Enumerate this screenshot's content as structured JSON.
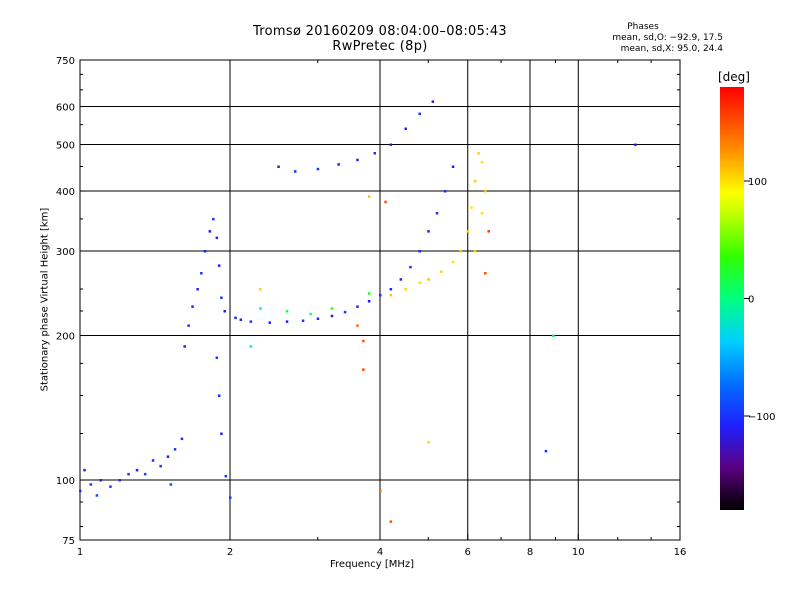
{
  "title": "Tromsø 20160209 08:04:00–08:05:43",
  "subtitle": "RwPretec (8p)",
  "phase_box": {
    "heading": "Phases",
    "line_o": "mean, sd,O: −92.9, 17.5",
    "line_x": "mean, sd,X:  95.0, 24.4"
  },
  "chart_data": {
    "type": "scatter",
    "title": "Tromsø 20160209 08:04:00–08:05:43",
    "subtitle": "RwPretec (8p)",
    "xlabel": "Frequency [MHz]",
    "ylabel": "Stationary phase Virtual Height [km]",
    "xscale": "log",
    "yscale": "log",
    "xlim": [
      1,
      16
    ],
    "ylim": [
      75,
      750
    ],
    "xticks": [
      1,
      2,
      4,
      6,
      8,
      10,
      16
    ],
    "xtick_labels": [
      "1",
      "2",
      "4",
      "6",
      "8",
      "10",
      "16"
    ],
    "yticks": [
      75,
      100,
      200,
      300,
      400,
      500,
      600,
      750
    ],
    "ytick_labels": [
      "75",
      "100",
      "200",
      "300",
      "400",
      "500",
      "600",
      "750"
    ],
    "grid": true,
    "colorbar": {
      "label": "[deg]",
      "range": [
        -180,
        180
      ],
      "ticks": [
        100,
        0,
        -100
      ],
      "tick_labels": [
        "100",
        "0",
        "−100"
      ]
    },
    "series": [
      {
        "values": [
          [
            1.0,
            95,
            -100
          ],
          [
            1.02,
            105,
            -110
          ],
          [
            1.05,
            98,
            -100
          ],
          [
            1.08,
            93,
            -90
          ],
          [
            1.1,
            100,
            -110
          ],
          [
            1.15,
            97,
            -100
          ],
          [
            1.2,
            100,
            -105
          ],
          [
            1.25,
            103,
            -100
          ],
          [
            1.3,
            105,
            -110
          ],
          [
            1.35,
            103,
            -95
          ],
          [
            1.4,
            110,
            -105
          ],
          [
            1.45,
            107,
            -100
          ],
          [
            1.5,
            112,
            -110
          ],
          [
            1.55,
            116,
            -100
          ],
          [
            1.6,
            122,
            -105
          ],
          [
            1.52,
            98,
            -90
          ],
          [
            1.62,
            190,
            -110
          ],
          [
            1.65,
            210,
            -100
          ],
          [
            1.68,
            230,
            -105
          ],
          [
            1.72,
            250,
            -110
          ],
          [
            1.75,
            270,
            -100
          ],
          [
            1.78,
            300,
            -105
          ],
          [
            1.82,
            330,
            -110
          ],
          [
            1.85,
            350,
            -100
          ],
          [
            1.88,
            320,
            -105
          ],
          [
            1.9,
            280,
            -110
          ],
          [
            1.92,
            240,
            -100
          ],
          [
            1.95,
            225,
            -110
          ],
          [
            1.88,
            180,
            -100
          ],
          [
            1.9,
            150,
            -105
          ],
          [
            1.92,
            125,
            -110
          ],
          [
            1.96,
            102,
            -100
          ],
          [
            2.0,
            92,
            -95
          ],
          [
            2.05,
            218,
            -105
          ],
          [
            2.1,
            216,
            -110
          ],
          [
            2.2,
            214,
            -100
          ],
          [
            2.4,
            213,
            -105
          ],
          [
            2.6,
            214,
            -110
          ],
          [
            2.8,
            215,
            -100
          ],
          [
            3.0,
            217,
            -105
          ],
          [
            3.2,
            220,
            -110
          ],
          [
            3.4,
            224,
            -100
          ],
          [
            3.6,
            230,
            -105
          ],
          [
            3.8,
            236,
            -110
          ],
          [
            4.0,
            243,
            -100
          ],
          [
            4.2,
            250,
            -105
          ],
          [
            4.4,
            262,
            -110
          ],
          [
            4.6,
            278,
            -100
          ],
          [
            4.8,
            300,
            -105
          ],
          [
            5.0,
            330,
            -110
          ],
          [
            5.2,
            360,
            -100
          ],
          [
            5.4,
            400,
            -105
          ],
          [
            5.6,
            450,
            -110
          ],
          [
            2.5,
            450,
            -110
          ],
          [
            2.7,
            440,
            -105
          ],
          [
            3.0,
            445,
            -100
          ],
          [
            3.3,
            455,
            -110
          ],
          [
            3.6,
            465,
            -105
          ],
          [
            3.9,
            480,
            -100
          ],
          [
            4.2,
            500,
            -110
          ],
          [
            4.5,
            540,
            -105
          ],
          [
            4.8,
            580,
            -100
          ],
          [
            5.1,
            615,
            -110
          ],
          [
            13.0,
            500,
            -110
          ],
          [
            8.6,
            115,
            -100
          ]
        ]
      },
      {
        "values": [
          [
            4.2,
            243,
            110
          ],
          [
            4.5,
            250,
            105
          ],
          [
            4.8,
            258,
            100
          ],
          [
            5.0,
            262,
            110
          ],
          [
            5.3,
            272,
            105
          ],
          [
            5.6,
            285,
            100
          ],
          [
            5.8,
            300,
            110
          ],
          [
            6.0,
            330,
            105
          ],
          [
            6.1,
            370,
            100
          ],
          [
            6.2,
            420,
            110
          ],
          [
            6.3,
            480,
            105
          ],
          [
            6.4,
            460,
            100
          ],
          [
            6.5,
            400,
            110
          ],
          [
            6.2,
            300,
            105
          ],
          [
            6.4,
            360,
            100
          ],
          [
            3.8,
            390,
            110
          ],
          [
            5.0,
            120,
            105
          ],
          [
            2.3,
            250,
            105
          ]
        ]
      },
      {
        "values": [
          [
            3.7,
            195,
            150
          ],
          [
            3.7,
            170,
            155
          ],
          [
            3.6,
            210,
            140
          ],
          [
            4.1,
            380,
            150
          ],
          [
            6.6,
            330,
            160
          ],
          [
            6.5,
            270,
            150
          ],
          [
            4.0,
            95,
            140
          ],
          [
            4.2,
            82,
            150
          ]
        ]
      },
      {
        "values": [
          [
            2.3,
            228,
            0
          ],
          [
            2.6,
            225,
            20
          ],
          [
            2.9,
            222,
            10
          ],
          [
            3.2,
            228,
            30
          ],
          [
            3.8,
            245,
            20
          ],
          [
            2.2,
            190,
            0
          ],
          [
            8.9,
            200,
            10
          ]
        ]
      }
    ]
  }
}
